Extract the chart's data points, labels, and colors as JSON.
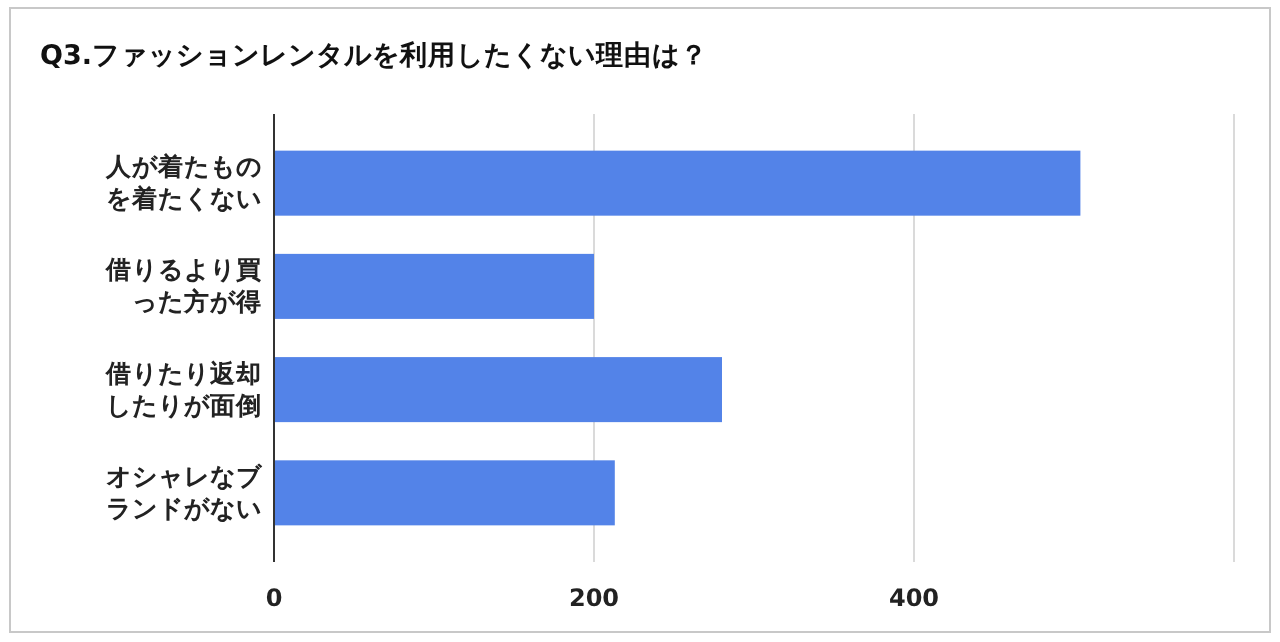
{
  "chart_data": {
    "type": "bar",
    "orientation": "horizontal",
    "title": "Q3.ファッションレンタルを利用したくない理由は？",
    "categories": [
      "人が着たものを着たくない",
      "借りるより買った方が得",
      "借りたり返却したりが面倒",
      "オシャレなブランドがない"
    ],
    "values": [
      504,
      200,
      280,
      213
    ],
    "color": "#5383e8",
    "xlim": [
      0,
      600
    ],
    "xticks": [
      0,
      200,
      400,
      {
        "value": 600,
        "label": null
      }
    ],
    "grid": "x"
  }
}
